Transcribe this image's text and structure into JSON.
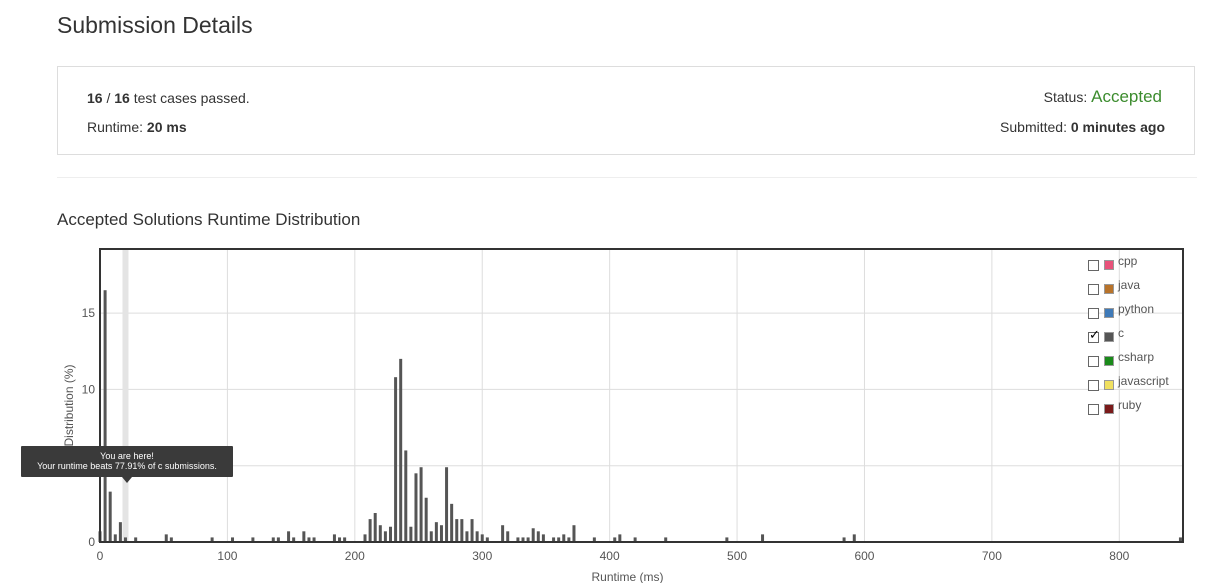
{
  "page": {
    "title": "Submission Details"
  },
  "summary": {
    "passed": "16",
    "separator": "/",
    "total": "16",
    "passed_suffix": "test cases passed.",
    "runtime_label": "Runtime:",
    "runtime_value": "20 ms",
    "status_label": "Status:",
    "status_value": "Accepted",
    "submitted_label": "Submitted:",
    "submitted_value": "0 minutes ago"
  },
  "section": {
    "title": "Accepted Solutions Runtime Distribution"
  },
  "tooltip": {
    "line1": "You are here!",
    "line2": "Your runtime beats 77.91% of c submissions."
  },
  "legend": [
    {
      "label": "cpp",
      "color": "#e8527a",
      "checked": false
    },
    {
      "label": "java",
      "color": "#b8732a",
      "checked": false
    },
    {
      "label": "python",
      "color": "#3f7ab8",
      "checked": false
    },
    {
      "label": "c",
      "color": "#555555",
      "checked": true
    },
    {
      "label": "csharp",
      "color": "#1a8a1a",
      "checked": false
    },
    {
      "label": "javascript",
      "color": "#f0e060",
      "checked": false
    },
    {
      "label": "ruby",
      "color": "#7a1a1a",
      "checked": false
    }
  ],
  "chart_data": {
    "type": "bar",
    "xlabel": "Runtime (ms)",
    "ylabel": "Distribution (%)",
    "xlim": [
      0,
      850
    ],
    "ylim": [
      0,
      19.2
    ],
    "xticks": [
      0,
      100,
      200,
      300,
      400,
      500,
      600,
      700,
      800
    ],
    "yticks": [
      0,
      10,
      15
    ],
    "grid": true,
    "highlight_x": 20,
    "series": [
      {
        "color": "#555555",
        "x": [
          0,
          4,
          8,
          12,
          16,
          20,
          28,
          52,
          56,
          88,
          104,
          120,
          136,
          140,
          148,
          152,
          160,
          164,
          168,
          184,
          188,
          192,
          208,
          212,
          216,
          220,
          224,
          228,
          232,
          236,
          240,
          244,
          248,
          252,
          256,
          260,
          264,
          268,
          272,
          276,
          280,
          284,
          288,
          292,
          296,
          300,
          304,
          316,
          320,
          328,
          332,
          336,
          340,
          344,
          348,
          356,
          360,
          364,
          368,
          372,
          388,
          404,
          408,
          420,
          444,
          492,
          520,
          584,
          592,
          848
        ],
        "values": [
          0.7,
          16.5,
          3.3,
          0.5,
          1.3,
          0.3,
          0.3,
          0.5,
          0.3,
          0.3,
          0.3,
          0.3,
          0.3,
          0.3,
          0.7,
          0.3,
          0.7,
          0.3,
          0.3,
          0.5,
          0.3,
          0.3,
          0.5,
          1.5,
          1.9,
          1.1,
          0.7,
          1.0,
          10.8,
          12.0,
          6.0,
          1.0,
          4.5,
          4.9,
          2.9,
          0.7,
          1.3,
          1.1,
          4.9,
          2.5,
          1.5,
          1.5,
          0.7,
          1.5,
          0.7,
          0.5,
          0.3,
          1.1,
          0.7,
          0.3,
          0.3,
          0.3,
          0.9,
          0.7,
          0.5,
          0.3,
          0.3,
          0.5,
          0.3,
          1.1,
          0.3,
          0.3,
          0.5,
          0.3,
          0.3,
          0.3,
          0.5,
          0.3,
          0.5,
          0.3
        ]
      }
    ]
  }
}
